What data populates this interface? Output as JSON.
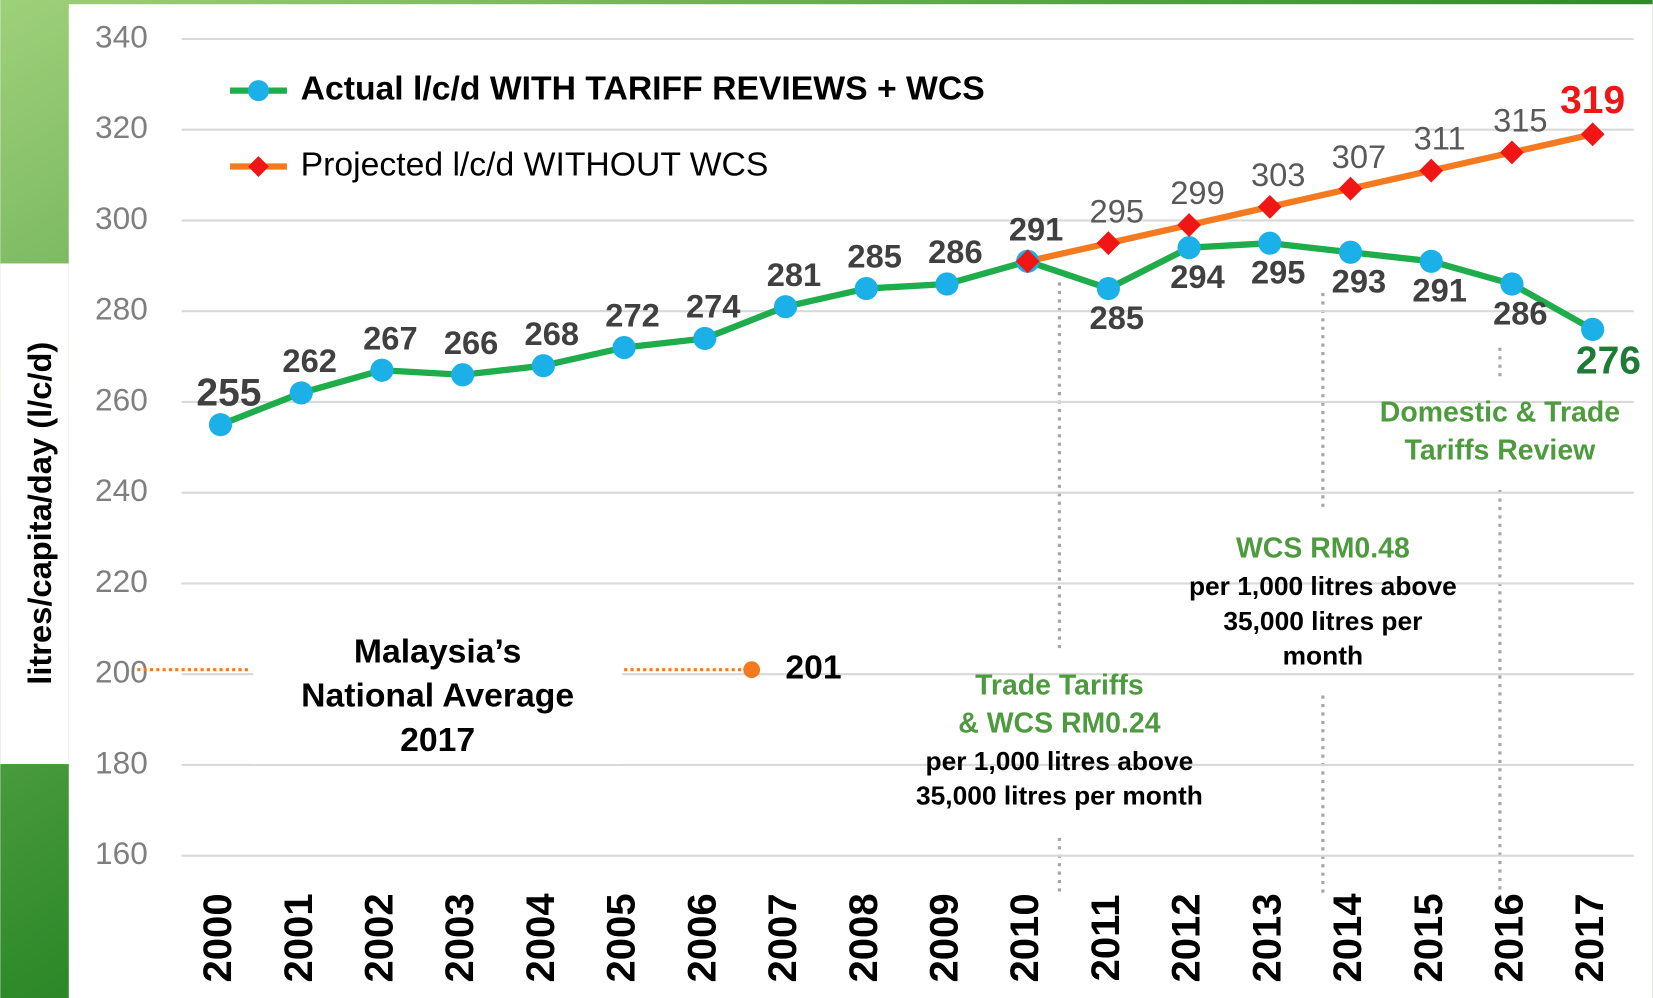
{
  "chart_data": {
    "type": "line",
    "y_label": "litres/capita/day (l/c/d)",
    "categories": [
      "2000",
      "2001",
      "2002",
      "2003",
      "2004",
      "2005",
      "2006",
      "2007",
      "2008",
      "2009",
      "2010",
      "2011",
      "2012",
      "2013",
      "2014",
      "2015",
      "2016",
      "2017"
    ],
    "series": [
      {
        "name": "Actual l/c/d WITH TARIFF REVIEWS + WCS",
        "color": "#1fad4b",
        "marker_color": "#1cb0e8",
        "label_color": "#404040",
        "last_label_color": "#1e7a34",
        "values": [
          255,
          262,
          267,
          266,
          268,
          272,
          274,
          281,
          285,
          286,
          291,
          285,
          294,
          295,
          293,
          291,
          286,
          276
        ]
      },
      {
        "name": "Projected l/c/d WITHOUT WCS",
        "color": "#f47a20",
        "marker_color": "#f01616",
        "label_color": "#595959",
        "last_label_color": "#f01616",
        "values": [
          null,
          null,
          null,
          null,
          null,
          null,
          null,
          null,
          null,
          null,
          291,
          295,
          299,
          303,
          307,
          311,
          315,
          319
        ]
      }
    ],
    "ylim": [
      160,
      340
    ],
    "yticks": [
      160,
      180,
      200,
      220,
      240,
      260,
      280,
      300,
      320,
      340
    ],
    "grid": true,
    "reference": {
      "label": [
        "Malaysia’s",
        "National Average",
        "2017"
      ],
      "value": 201,
      "color": "#f47a20"
    },
    "annotations": [
      {
        "title": [
          "Trade Tariffs",
          "& WCS RM0.24"
        ],
        "text": [
          "per 1,000  litres above",
          "35,000 litres per month"
        ]
      },
      {
        "title": [
          "WCS RM0.48"
        ],
        "text": [
          "per 1,000  litres above",
          "35,000 litres per",
          "month"
        ]
      },
      {
        "title": [
          "Domestic & Trade",
          "Tariffs Review"
        ],
        "text": []
      }
    ]
  }
}
